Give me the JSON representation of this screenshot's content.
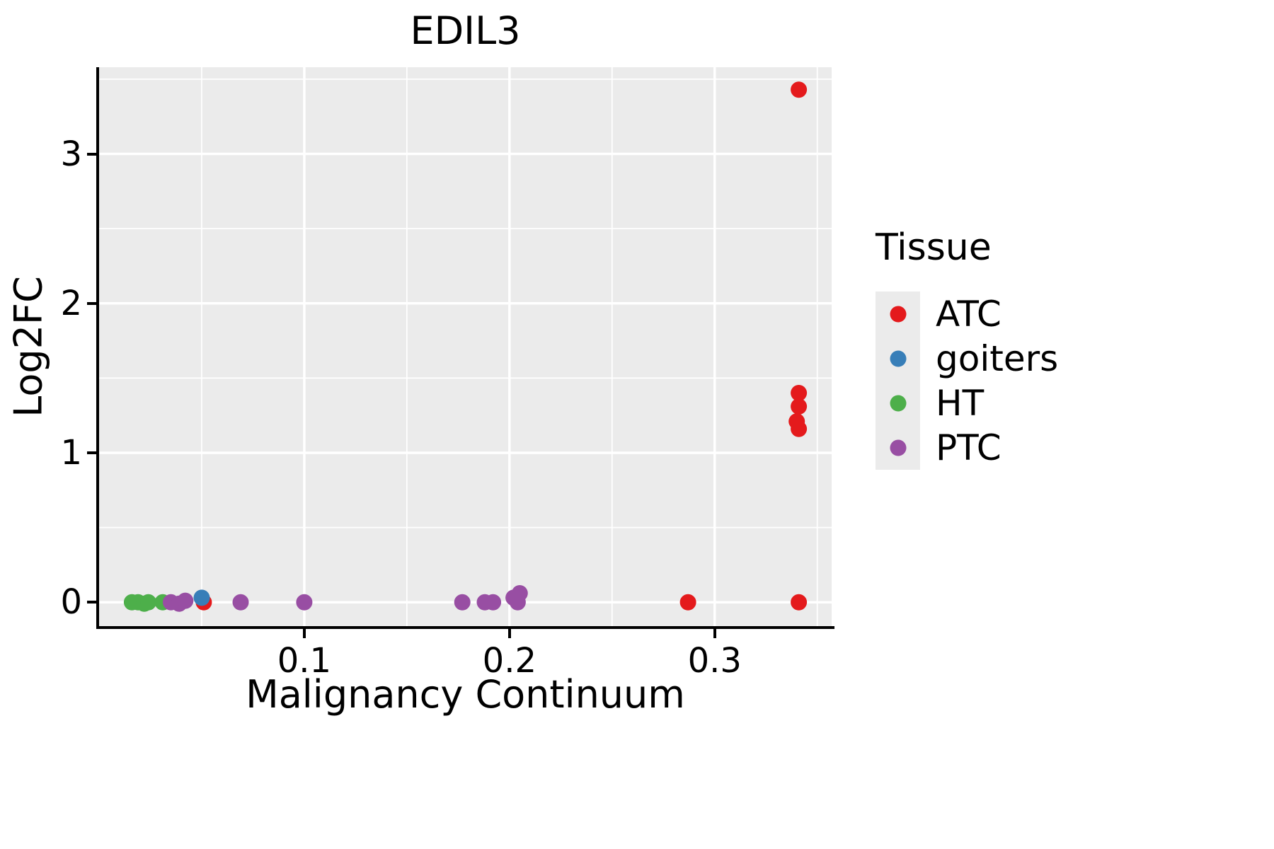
{
  "title": "EDIL3",
  "axes": {
    "x": {
      "label": "Malignancy Continuum",
      "domain": [
        0,
        0.357
      ],
      "ticks": [
        {
          "v": 0.1,
          "label": "0.1"
        },
        {
          "v": 0.2,
          "label": "0.2"
        },
        {
          "v": 0.3,
          "label": "0.3"
        }
      ],
      "minor_gridlines": [
        0.05,
        0.15,
        0.25,
        0.35
      ]
    },
    "y": {
      "label": "Log2FC",
      "domain": [
        -0.16,
        3.58
      ],
      "ticks": [
        {
          "v": 0,
          "label": "0"
        },
        {
          "v": 1,
          "label": "1"
        },
        {
          "v": 2,
          "label": "2"
        },
        {
          "v": 3,
          "label": "3"
        }
      ],
      "minor_gridlines": [
        0.5,
        1.5,
        2.5,
        3.5
      ]
    }
  },
  "legend": {
    "title": "Tissue",
    "position": "right"
  },
  "style": {
    "panel_background": "#EBEBEB",
    "gridline_color": "#FFFFFF",
    "axis_color": "#000000",
    "point_radius": 11.5
  },
  "chart_data": {
    "type": "scatter",
    "title": "EDIL3",
    "xlabel": "Malignancy Continuum",
    "ylabel": "Log2FC",
    "xlim": [
      0,
      0.357
    ],
    "ylim": [
      -0.16,
      3.58
    ],
    "grid": true,
    "legend_title": "Tissue",
    "legend_position": "right",
    "series": [
      {
        "name": "ATC",
        "color": "#E41A1C",
        "points": [
          [
            0.051,
            0
          ],
          [
            0.287,
            0
          ],
          [
            0.341,
            0
          ],
          [
            0.341,
            1.16
          ],
          [
            0.34,
            1.21
          ],
          [
            0.341,
            1.31
          ],
          [
            0.341,
            1.4
          ],
          [
            0.341,
            3.43
          ]
        ]
      },
      {
        "name": "goiters",
        "color": "#377EB8",
        "points": [
          [
            0.05,
            0.03
          ]
        ]
      },
      {
        "name": "HT",
        "color": "#4DAF4A",
        "points": [
          [
            0.016,
            0
          ],
          [
            0.019,
            0
          ],
          [
            0.022,
            -0.01
          ],
          [
            0.024,
            0
          ],
          [
            0.031,
            0
          ]
        ]
      },
      {
        "name": "PTC",
        "color": "#984EA3",
        "points": [
          [
            0.035,
            0
          ],
          [
            0.039,
            -0.01
          ],
          [
            0.042,
            0.01
          ],
          [
            0.069,
            0
          ],
          [
            0.1,
            0
          ],
          [
            0.177,
            0
          ],
          [
            0.188,
            0
          ],
          [
            0.192,
            0
          ],
          [
            0.204,
            0
          ],
          [
            0.202,
            0.03
          ],
          [
            0.205,
            0.06
          ]
        ]
      }
    ]
  }
}
